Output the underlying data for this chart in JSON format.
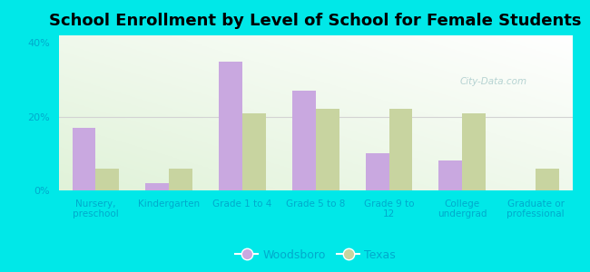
{
  "title": "School Enrollment by Level of School for Female Students",
  "categories": [
    "Nursery,\npreschool",
    "Kindergarten",
    "Grade 1 to 4",
    "Grade 5 to 8",
    "Grade 9 to\n12",
    "College\nundergrad",
    "Graduate or\nprofessional"
  ],
  "woodsboro": [
    17,
    2,
    35,
    27,
    10,
    8,
    0
  ],
  "texas": [
    6,
    6,
    21,
    22,
    22,
    21,
    6
  ],
  "woodsboro_color": "#c9a8e0",
  "texas_color": "#c8d4a0",
  "background_color": "#00e8e8",
  "ylim": [
    0,
    42
  ],
  "yticks": [
    0,
    20,
    40
  ],
  "ytick_labels": [
    "0%",
    "20%",
    "40%"
  ],
  "legend_woodsboro": "Woodsboro",
  "legend_texas": "Texas",
  "title_fontsize": 13,
  "bar_width": 0.32,
  "tick_color": "#00bbcc",
  "label_color": "#00aacc"
}
